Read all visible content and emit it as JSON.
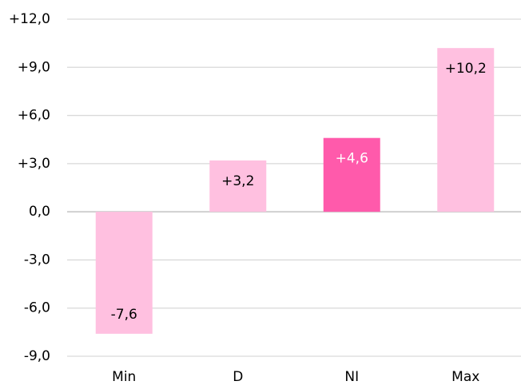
{
  "chart_data": {
    "type": "bar",
    "categories": [
      "Min",
      "D",
      "NI",
      "Max"
    ],
    "values": [
      -7.6,
      3.2,
      4.6,
      10.2
    ],
    "data_labels": [
      "-7,6",
      "+3,2",
      "+4,6",
      "+10,2"
    ],
    "highlight_index": 2,
    "ylim": [
      -9,
      12
    ],
    "yticks": [
      12,
      9,
      6,
      3,
      0,
      -3,
      -6,
      -9
    ],
    "ytick_labels": [
      "+12,0",
      "+9,0",
      "+6,0",
      "+3,0",
      "0,0",
      "-3,0",
      "-6,0",
      "-9,0"
    ],
    "title": "",
    "xlabel": "",
    "ylabel": "",
    "grid": true,
    "legend": "none",
    "colors": {
      "bar": "#ffc0e0",
      "highlight": "#ff5aab",
      "label_on_light": "#000000",
      "label_on_highlight": "#ffffff",
      "grid": "#d9d9d9",
      "zero_line": "#d0d0d0"
    }
  }
}
